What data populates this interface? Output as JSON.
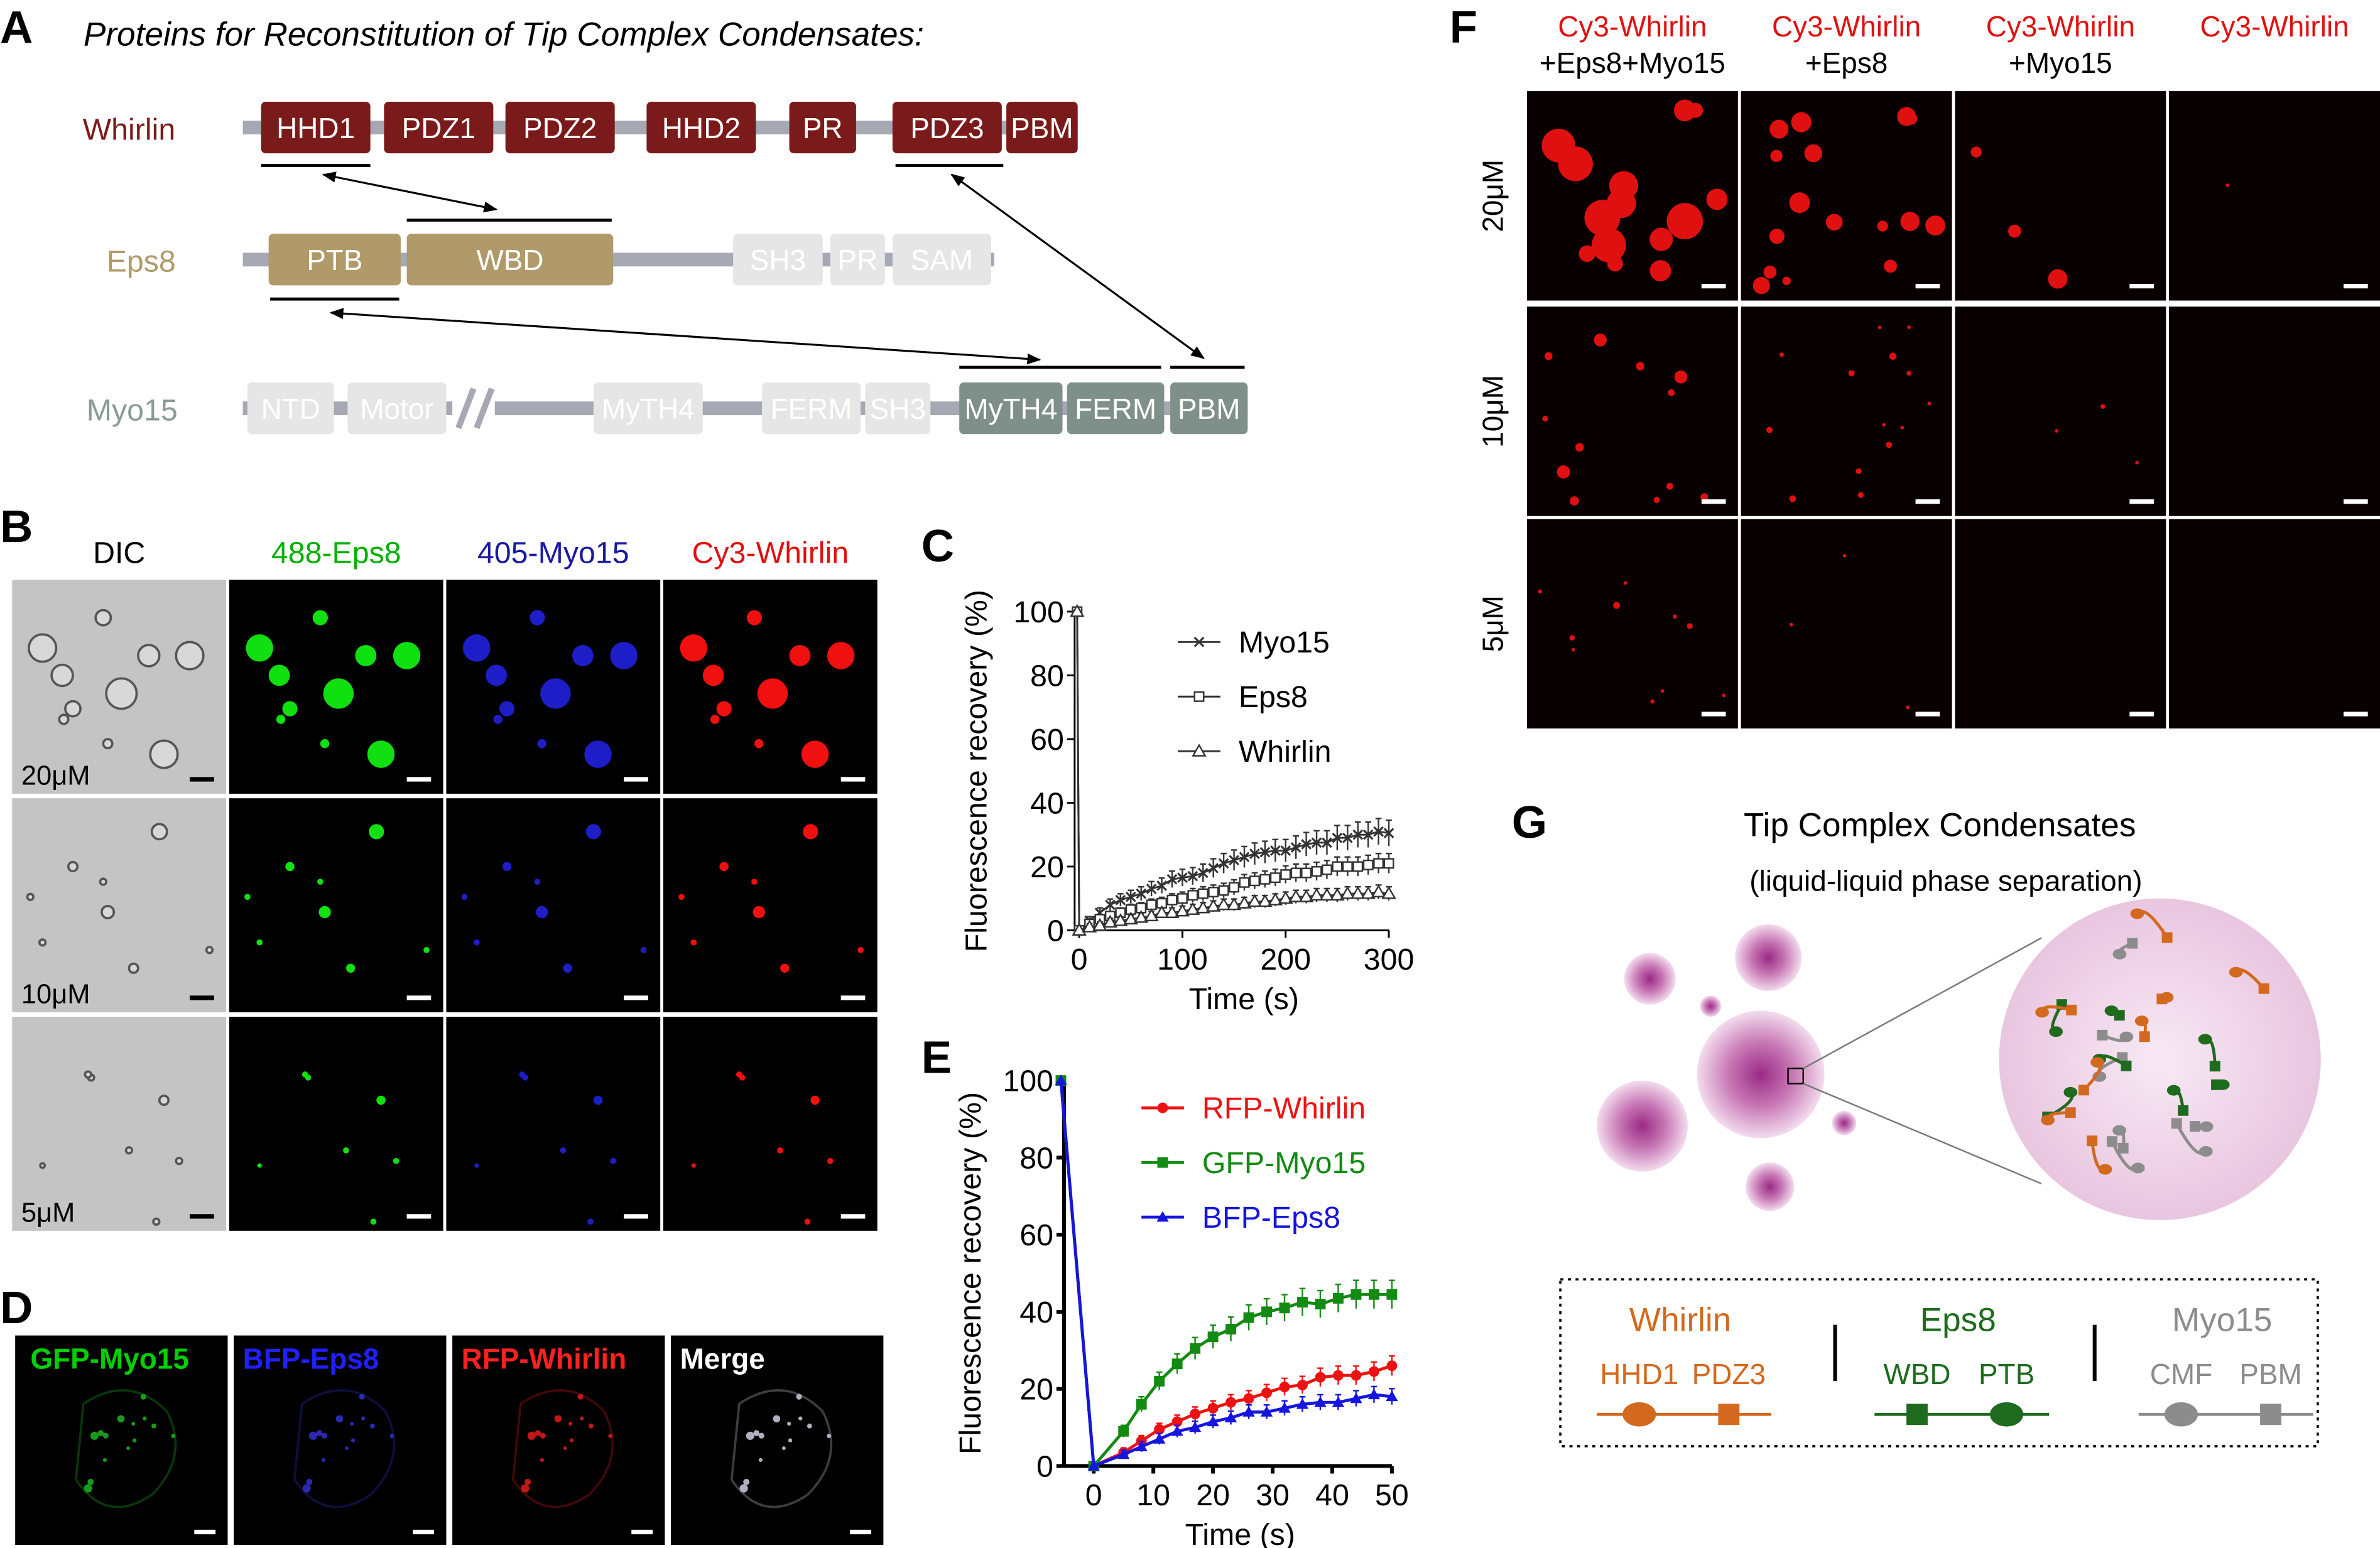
{
  "panel_labels": {
    "A": "A",
    "B": "B",
    "C": "C",
    "D": "D",
    "E": "E",
    "F": "F",
    "G": "G"
  },
  "panel_a": {
    "title": "Proteins for Reconstitution of Tip Complex Condensates:",
    "proteins": [
      {
        "name": "Whirlin",
        "name_color": "#7b1a1a",
        "domains": [
          {
            "label": "HHD1",
            "color": "#7b1a1a"
          },
          {
            "label": "PDZ1",
            "color": "#7b1a1a"
          },
          {
            "label": "PDZ2",
            "color": "#7b1a1a"
          },
          {
            "label": "HHD2",
            "color": "#7b1a1a"
          },
          {
            "label": "PR",
            "color": "#7b1a1a"
          },
          {
            "label": "PDZ3",
            "color": "#7b1a1a"
          },
          {
            "label": "PBM",
            "color": "#7b1a1a"
          }
        ]
      },
      {
        "name": "Eps8",
        "name_color": "#b09a6a",
        "domains": [
          {
            "label": "PTB",
            "color": "#b09a6a"
          },
          {
            "label": "WBD",
            "color": "#b09a6a"
          },
          {
            "label": "SH3",
            "color": "#e6e6e6"
          },
          {
            "label": "PR",
            "color": "#e6e6e6"
          },
          {
            "label": "SAM",
            "color": "#e6e6e6"
          }
        ]
      },
      {
        "name": "Myo15",
        "name_color": "#8a9a96",
        "domains": [
          {
            "label": "NTD",
            "color": "#e6e6e6"
          },
          {
            "label": "Motor",
            "color": "#e6e6e6"
          },
          {
            "label": "MyTH4",
            "color": "#e6e6e6"
          },
          {
            "label": "FERM",
            "color": "#e6e6e6"
          },
          {
            "label": "SH3",
            "color": "#e6e6e6"
          },
          {
            "label": "MyTH4",
            "color": "#7f8f8a"
          },
          {
            "label": "FERM",
            "color": "#7f8f8a"
          },
          {
            "label": "PBM",
            "color": "#7f8f8a"
          }
        ]
      }
    ]
  },
  "panel_b": {
    "columns": [
      {
        "label": "DIC",
        "color": "#000000"
      },
      {
        "label": "488-Eps8",
        "color": "#00b000"
      },
      {
        "label": "405-Myo15",
        "color": "#1a1aa0"
      },
      {
        "label": "Cy3-Whirlin",
        "color": "#e01010"
      }
    ],
    "rows": [
      "20μM",
      "10μM",
      "5μM"
    ]
  },
  "panel_d": {
    "columns": [
      {
        "label": "GFP-Myo15",
        "color": "#00d000"
      },
      {
        "label": "BFP-Eps8",
        "color": "#2020ff"
      },
      {
        "label": "RFP-Whirlin",
        "color": "#ff2020"
      },
      {
        "label": "Merge",
        "color": "#ffffff"
      }
    ]
  },
  "panel_f": {
    "columns": [
      {
        "line1": "Cy3-Whirlin",
        "line2": "+Eps8+Myo15"
      },
      {
        "line1": "Cy3-Whirlin",
        "line2": "+Eps8"
      },
      {
        "line1": "Cy3-Whirlin",
        "line2": "+Myo15"
      },
      {
        "line1": "Cy3-Whirlin",
        "line2": ""
      }
    ],
    "rows": [
      "20μM",
      "10μM",
      "5μM"
    ],
    "label_color": "#e01010"
  },
  "panel_g": {
    "title": "Tip Complex Condensates",
    "subtitle": "(liquid-liquid phase separation)",
    "legend": [
      {
        "name": "Whirlin",
        "color": "#d2691e",
        "domain1": "HHD1",
        "domain2": "PDZ3"
      },
      {
        "name": "Eps8",
        "color": "#1e6b1e",
        "domain1": "WBD",
        "domain2": "PTB"
      },
      {
        "name": "Myo15",
        "color": "#8c8c8c",
        "domain1": "CMF",
        "domain2": "PBM"
      }
    ]
  },
  "chart_data": [
    {
      "panel": "C",
      "type": "line",
      "xlabel": "Time (s)",
      "ylabel": "Fluorescence recovery (%)",
      "xlim": [
        0,
        300
      ],
      "ylim": [
        0,
        100
      ],
      "xticks": [
        0,
        100,
        200,
        300
      ],
      "yticks": [
        0,
        20,
        40,
        60,
        80,
        100
      ],
      "legend_placement": "top-right",
      "error_bars": true,
      "color": "#333333",
      "x": [
        -2,
        0,
        10,
        20,
        30,
        40,
        50,
        60,
        70,
        80,
        90,
        100,
        110,
        120,
        130,
        140,
        150,
        160,
        170,
        180,
        190,
        200,
        210,
        220,
        230,
        240,
        250,
        260,
        270,
        280,
        290,
        300
      ],
      "series": [
        {
          "name": "Myo15",
          "marker": "x",
          "values": [
            100,
            0,
            3,
            5.5,
            8,
            9.5,
            10.5,
            11.5,
            13,
            14,
            16,
            16.5,
            17,
            18,
            19.5,
            21,
            22,
            23,
            24,
            24.5,
            25,
            25,
            26,
            27,
            27.5,
            27.5,
            29,
            29,
            30,
            30,
            31,
            30.5
          ]
        },
        {
          "name": "Eps8",
          "marker": "open-square",
          "values": [
            100,
            0,
            2,
            3.5,
            4.5,
            5.5,
            6.5,
            7,
            8,
            8.5,
            9.5,
            10,
            11,
            11.5,
            12,
            12.5,
            13.5,
            15,
            15.5,
            16,
            16.5,
            17.5,
            18,
            18,
            18.5,
            19,
            20,
            20,
            20,
            20.5,
            21,
            21
          ]
        },
        {
          "name": "Whirlin",
          "marker": "open-triangle",
          "values": [
            100,
            0,
            1,
            1.5,
            2.5,
            3,
            3.5,
            4,
            4.5,
            5.5,
            5.5,
            6,
            6.5,
            7,
            7.5,
            8,
            8,
            8.5,
            9,
            9,
            9.5,
            10,
            10.5,
            10.5,
            11,
            11,
            11,
            11.5,
            11.5,
            11.5,
            12,
            11.5
          ]
        }
      ]
    },
    {
      "panel": "E",
      "type": "line",
      "xlabel": "Time (s)",
      "ylabel": "Fluorescence recovery (%)",
      "xlim": [
        -6,
        50
      ],
      "ylim": [
        0,
        100
      ],
      "xticks": [
        0,
        10,
        20,
        30,
        40,
        50
      ],
      "yticks": [
        0,
        20,
        40,
        60,
        80,
        100
      ],
      "legend_placement": "top-right",
      "error_bars": true,
      "x": [
        -5.5,
        0,
        5,
        8,
        11,
        14,
        17,
        20,
        23,
        26,
        29,
        32,
        35,
        38,
        41,
        44,
        47,
        50
      ],
      "series": [
        {
          "name": "RFP-Whirlin",
          "color": "#ee1111",
          "marker": "circle",
          "values": [
            100,
            0,
            3.5,
            6.5,
            9.5,
            11.5,
            13.5,
            15,
            16.5,
            17.5,
            19,
            20.5,
            21,
            23,
            23.5,
            23.5,
            24.5,
            26
          ]
        },
        {
          "name": "GFP-Myo15",
          "color": "#138a13",
          "marker": "square",
          "values": [
            100,
            0,
            9,
            16,
            22,
            26.5,
            30.5,
            33.5,
            35.5,
            38.5,
            40,
            41,
            42.5,
            42,
            43.5,
            44.5,
            44.5,
            44.5
          ]
        },
        {
          "name": "BFP-Eps8",
          "color": "#1515dd",
          "marker": "triangle",
          "values": [
            100,
            0,
            3,
            5,
            7,
            9,
            10,
            11.5,
            12.5,
            14,
            14,
            15,
            16,
            16.5,
            16.5,
            17.5,
            18.5,
            18
          ]
        }
      ]
    }
  ]
}
